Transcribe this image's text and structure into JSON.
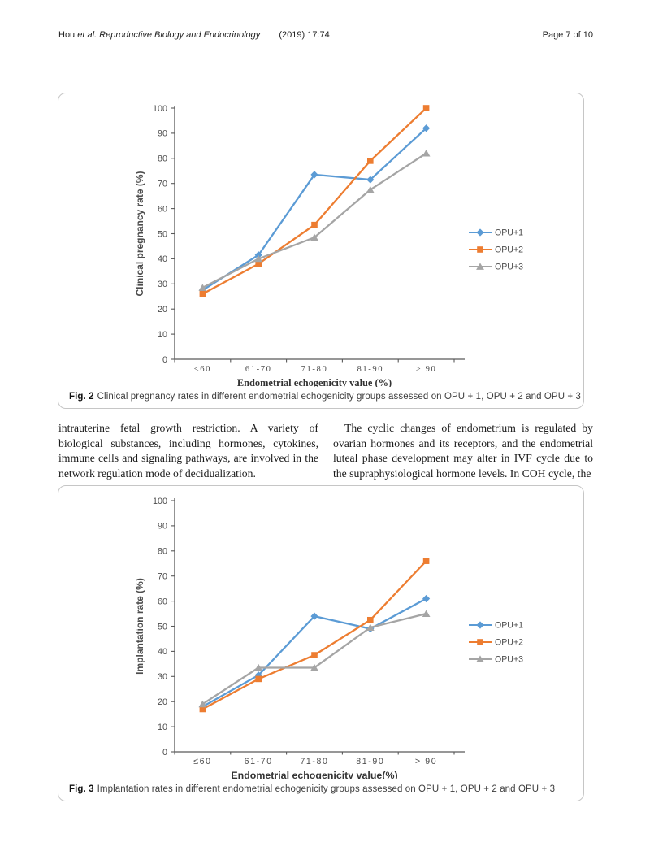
{
  "header": {
    "author": "Hou",
    "etal": "et al.",
    "journal": "Reproductive Biology and Endocrinology",
    "issue": "(2019) 17:74",
    "page": "Page 7 of 10"
  },
  "body_text": {
    "left_column": "intrauterine fetal growth restriction. A variety of biological substances, including hormones, cytokines, immune cells and signaling pathways, are involved in the network regulation mode of decidualization.",
    "right_column": "The cyclic changes of endometrium is regulated by ovarian hormones and its receptors, and the endometrial luteal phase development may alter in IVF cycle due to the supraphysiological hormone levels. In COH cycle, the"
  },
  "figures": [
    {
      "caption_label": "Fig. 2",
      "caption_text": "Clinical pregnancy rates in different endometrial echogenicity groups assessed on OPU + 1, OPU + 2 and OPU + 3"
    },
    {
      "caption_label": "Fig. 3",
      "caption_text": "Implantation rates in different endometrial echogenicity groups assessed on OPU + 1, OPU + 2 and OPU + 3"
    }
  ],
  "chart_data": [
    {
      "type": "line",
      "title": "",
      "categories": [
        "≤60",
        "61-70",
        "71-80",
        "81-90",
        "> 90"
      ],
      "series": [
        {
          "name": "OPU+1",
          "marker": "diamond",
          "color": "#5B9BD5",
          "values": [
            27.5,
            41.5,
            73.5,
            71.5,
            92
          ]
        },
        {
          "name": "OPU+2",
          "marker": "square",
          "color": "#ED7D31",
          "values": [
            26,
            38,
            53.5,
            79,
            100
          ]
        },
        {
          "name": "OPU+3",
          "marker": "triangle",
          "color": "#A5A5A5",
          "values": [
            28.5,
            40,
            48.5,
            67.5,
            82
          ]
        }
      ],
      "xlabel": "Endometrial  echogenicity value (%)",
      "ylabel": "Clinical pregnancy rate (%)",
      "ylim": [
        0,
        100
      ],
      "ytick_step": 10,
      "grid": false,
      "legend_position": "right",
      "xlabel_font": "serif",
      "tick_font": "serif"
    },
    {
      "type": "line",
      "title": "",
      "categories": [
        "≤60",
        "61-70",
        "71-80",
        "81-90",
        "> 90"
      ],
      "series": [
        {
          "name": "OPU+1",
          "marker": "diamond",
          "color": "#5B9BD5",
          "values": [
            18,
            30.5,
            54,
            49,
            61
          ]
        },
        {
          "name": "OPU+2",
          "marker": "square",
          "color": "#ED7D31",
          "values": [
            17,
            29,
            38.5,
            52.5,
            76
          ]
        },
        {
          "name": "OPU+3",
          "marker": "triangle",
          "color": "#A5A5A5",
          "values": [
            19,
            33.5,
            33.5,
            49.5,
            55
          ]
        }
      ],
      "xlabel": "Endometrial echogenicity value(%)",
      "ylabel": "Implantation rate (%)",
      "ylim": [
        0,
        100
      ],
      "ytick_step": 10,
      "grid": false,
      "legend_position": "right",
      "xlabel_font": "sans",
      "tick_font": "sans"
    }
  ]
}
